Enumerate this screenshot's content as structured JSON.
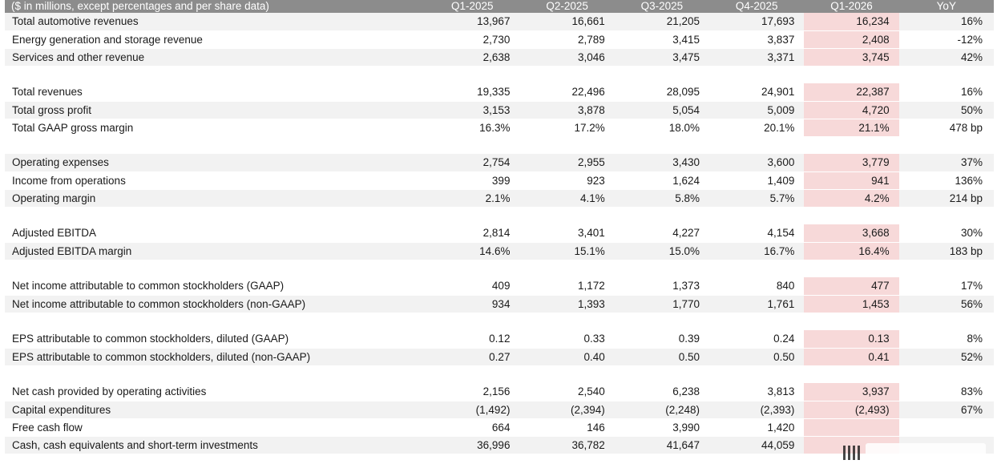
{
  "header": {
    "title": "($ in millions, except percentages and per share data)",
    "columns": [
      "Q1-2025",
      "Q2-2025",
      "Q3-2025",
      "Q4-2025",
      "Q1-2026",
      "YoY"
    ]
  },
  "highlight_color": "#f7d9d9",
  "header_color": "#8c8c8c",
  "rows": [
    {
      "type": "data",
      "label": "Total automotive revenues",
      "values": [
        "13,967",
        "16,661",
        "21,205",
        "17,693",
        "16,234",
        "16%"
      ]
    },
    {
      "type": "data",
      "label": "Energy generation and storage revenue",
      "values": [
        "2,730",
        "2,789",
        "3,415",
        "3,837",
        "2,408",
        "-12%"
      ]
    },
    {
      "type": "data",
      "label": "Services and other revenue",
      "values": [
        "2,638",
        "3,046",
        "3,475",
        "3,371",
        "3,745",
        "42%"
      ]
    },
    {
      "type": "spacer"
    },
    {
      "type": "data",
      "label": "Total revenues",
      "values": [
        "19,335",
        "22,496",
        "28,095",
        "24,901",
        "22,387",
        "16%"
      ]
    },
    {
      "type": "data",
      "label": "Total gross profit",
      "values": [
        "3,153",
        "3,878",
        "5,054",
        "5,009",
        "4,720",
        "50%"
      ]
    },
    {
      "type": "data",
      "label": "Total GAAP gross margin",
      "values": [
        "16.3%",
        "17.2%",
        "18.0%",
        "20.1%",
        "21.1%",
        "478 bp"
      ]
    },
    {
      "type": "spacer"
    },
    {
      "type": "data",
      "label": "Operating expenses",
      "values": [
        "2,754",
        "2,955",
        "3,430",
        "3,600",
        "3,779",
        "37%"
      ]
    },
    {
      "type": "data",
      "label": "Income from operations",
      "values": [
        "399",
        "923",
        "1,624",
        "1,409",
        "941",
        "136%"
      ]
    },
    {
      "type": "data",
      "label": "Operating margin",
      "values": [
        "2.1%",
        "4.1%",
        "5.8%",
        "5.7%",
        "4.2%",
        "214 bp"
      ]
    },
    {
      "type": "spacer"
    },
    {
      "type": "data",
      "label": "Adjusted EBITDA",
      "values": [
        "2,814",
        "3,401",
        "4,227",
        "4,154",
        "3,668",
        "30%"
      ]
    },
    {
      "type": "data",
      "label": "Adjusted EBITDA margin",
      "values": [
        "14.6%",
        "15.1%",
        "15.0%",
        "16.7%",
        "16.4%",
        "183 bp"
      ]
    },
    {
      "type": "spacer"
    },
    {
      "type": "data",
      "label": "Net income attributable to common stockholders (GAAP)",
      "values": [
        "409",
        "1,172",
        "1,373",
        "840",
        "477",
        "17%"
      ]
    },
    {
      "type": "data",
      "label": "Net income attributable to common stockholders (non-GAAP)",
      "values": [
        "934",
        "1,393",
        "1,770",
        "1,761",
        "1,453",
        "56%"
      ]
    },
    {
      "type": "spacer"
    },
    {
      "type": "data",
      "label": "EPS attributable to common stockholders, diluted (GAAP)",
      "values": [
        "0.12",
        "0.33",
        "0.39",
        "0.24",
        "0.13",
        "8%"
      ]
    },
    {
      "type": "data",
      "label": "EPS attributable to common stockholders, diluted (non-GAAP)",
      "values": [
        "0.27",
        "0.40",
        "0.50",
        "0.50",
        "0.41",
        "52%"
      ]
    },
    {
      "type": "spacer"
    },
    {
      "type": "data",
      "label": "Net cash provided by operating activities",
      "values": [
        "2,156",
        "2,540",
        "6,238",
        "3,813",
        "3,937",
        "83%"
      ]
    },
    {
      "type": "data",
      "label": "Capital expenditures",
      "values": [
        "(1,492)",
        "(2,394)",
        "(2,248)",
        "(2,393)",
        "(2,493)",
        "67%"
      ]
    },
    {
      "type": "data",
      "label": "Free cash flow",
      "values": [
        "664",
        "146",
        "3,990",
        "1,420",
        "",
        ""
      ]
    },
    {
      "type": "data",
      "label": "Cash, cash equivalents and short-term investments",
      "values": [
        "36,996",
        "36,782",
        "41,647",
        "44,059",
        "",
        ""
      ]
    }
  ]
}
